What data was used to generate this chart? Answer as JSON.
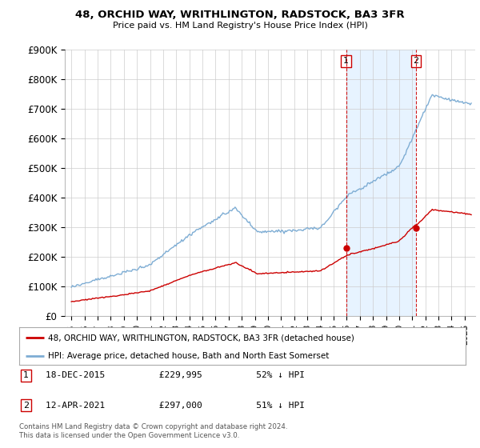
{
  "title": "48, ORCHID WAY, WRITHLINGTON, RADSTOCK, BA3 3FR",
  "subtitle": "Price paid vs. HM Land Registry's House Price Index (HPI)",
  "ylim": [
    0,
    900000
  ],
  "yticks": [
    0,
    100000,
    200000,
    300000,
    400000,
    500000,
    600000,
    700000,
    800000,
    900000
  ],
  "ytick_labels": [
    "£0",
    "£100K",
    "£200K",
    "£300K",
    "£400K",
    "£500K",
    "£600K",
    "£700K",
    "£800K",
    "£900K"
  ],
  "hpi_color": "#7eadd4",
  "price_color": "#cc0000",
  "sale1_date": 2015.96,
  "sale1_price": 229995,
  "sale2_date": 2021.28,
  "sale2_price": 297000,
  "vline_color": "#cc0000",
  "background_color": "#ffffff",
  "grid_color": "#cccccc",
  "shade_color": "#ddeeff",
  "legend_label_red": "48, ORCHID WAY, WRITHLINGTON, RADSTOCK, BA3 3FR (detached house)",
  "legend_label_blue": "HPI: Average price, detached house, Bath and North East Somerset",
  "annotation1_text": "18-DEC-2015          £229,995          52% ↓ HPI",
  "annotation2_text": "12-APR-2021          £297,000          51% ↓ HPI",
  "footnote": "Contains HM Land Registry data © Crown copyright and database right 2024.\nThis data is licensed under the Open Government Licence v3.0.",
  "xlim_start": 1994.5,
  "xlim_end": 2025.8,
  "x_ticks": [
    1995,
    1996,
    1997,
    1998,
    1999,
    2000,
    2001,
    2002,
    2003,
    2004,
    2005,
    2006,
    2007,
    2008,
    2009,
    2010,
    2011,
    2012,
    2013,
    2014,
    2015,
    2016,
    2017,
    2018,
    2019,
    2020,
    2021,
    2022,
    2023,
    2024,
    2025
  ]
}
